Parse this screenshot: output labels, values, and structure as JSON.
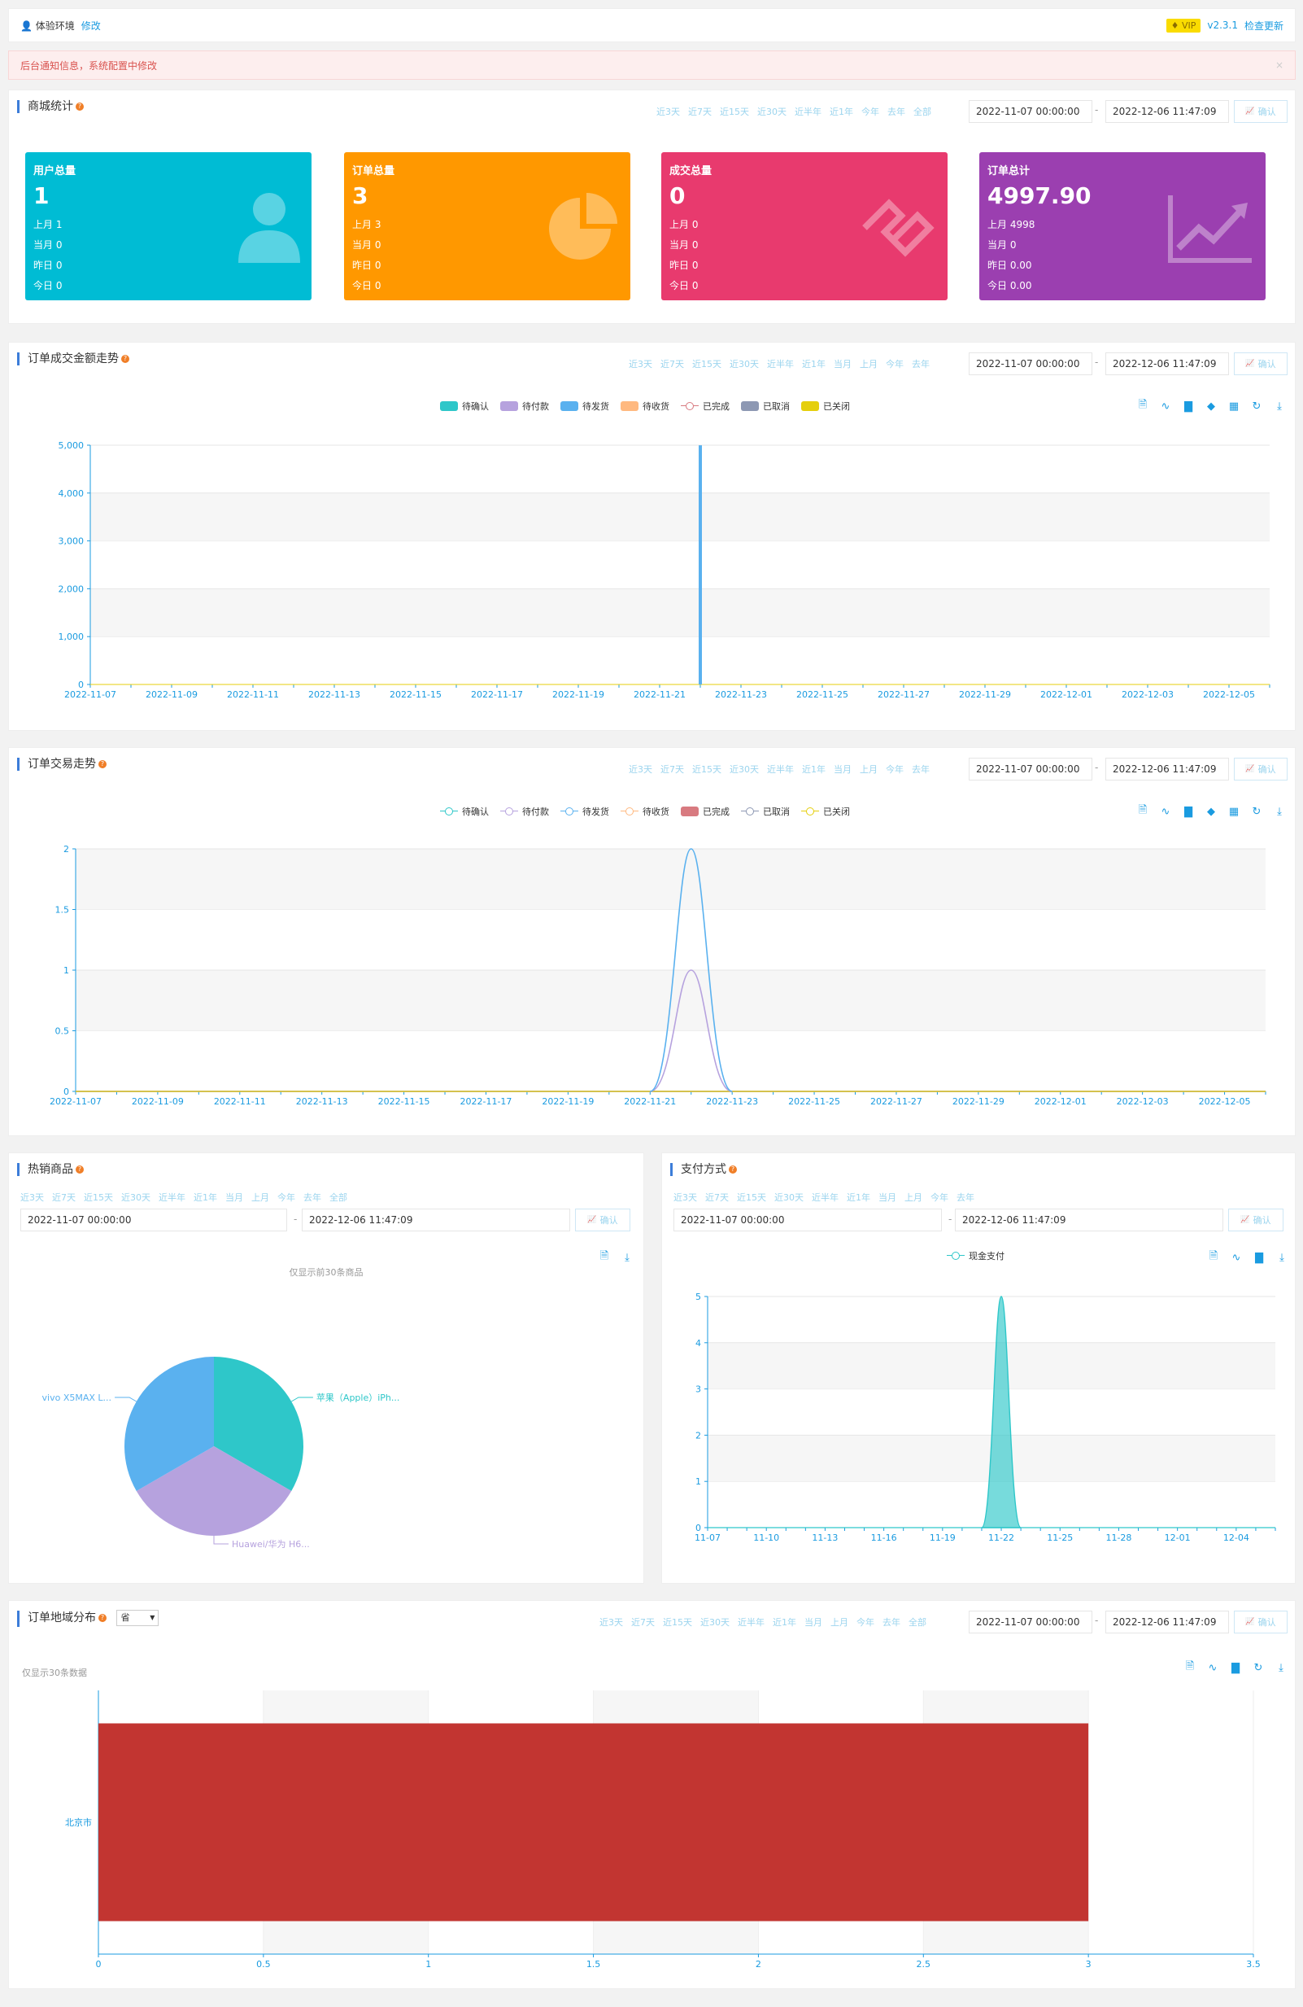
{
  "topbar": {
    "env": "体验环境",
    "edit": "修改",
    "vip": "VIP",
    "version": "v2.3.1",
    "update": "检查更新"
  },
  "notice": {
    "text": "后台通知信息，系统配置中修改",
    "close": "×"
  },
  "ranges_full": [
    "近3天",
    "近7天",
    "近15天",
    "近30天",
    "近半年",
    "近1年",
    "今年",
    "去年",
    "全部"
  ],
  "ranges_trend": [
    "近3天",
    "近7天",
    "近15天",
    "近30天",
    "近半年",
    "近1年",
    "当月",
    "上月",
    "今年",
    "去年"
  ],
  "ranges_hot": [
    "近3天",
    "近7天",
    "近15天",
    "近30天",
    "近半年",
    "近1年",
    "当月",
    "上月",
    "今年",
    "去年",
    "全部"
  ],
  "ranges_pay": [
    "近3天",
    "近7天",
    "近15天",
    "近30天",
    "近半年",
    "近1年",
    "当月",
    "上月",
    "今年",
    "去年"
  ],
  "ranges_region": [
    "近3天",
    "近7天",
    "近15天",
    "近30天",
    "近半年",
    "近1年",
    "当月",
    "上月",
    "今年",
    "去年",
    "全部"
  ],
  "date_start": "2022-11-07 00:00:00",
  "date_end": "2022-12-06 11:47:09",
  "confirm": "确认",
  "shop": {
    "title": "商城统计",
    "cards": [
      {
        "title": "用户总量",
        "value": "1",
        "lines": [
          "上月 1",
          "当月 0",
          "昨日 0",
          "今日 0"
        ],
        "color": "#00bcd4",
        "icon": "user-icon"
      },
      {
        "title": "订单总量",
        "value": "3",
        "lines": [
          "上月 3",
          "当月 0",
          "昨日 0",
          "今日 0"
        ],
        "color": "#ff9800",
        "icon": "pie-chart-icon"
      },
      {
        "title": "成交总量",
        "value": "0",
        "lines": [
          "上月 0",
          "当月 0",
          "昨日 0",
          "今日 0"
        ],
        "color": "#e83a6e",
        "icon": "deal-icon"
      },
      {
        "title": "订单总计",
        "value": "4997.90",
        "lines": [
          "上月 4998",
          "当月 0",
          "昨日 0.00",
          "今日 0.00"
        ],
        "color": "#9b3fb0",
        "icon": "trend-icon"
      }
    ]
  },
  "amount_panel": {
    "title": "订单成交金额走势"
  },
  "trade_panel": {
    "title": "订单交易走势"
  },
  "hot_panel": {
    "title": "热销商品",
    "note": "仅显示前30条商品"
  },
  "pay_panel": {
    "title": "支付方式"
  },
  "region_panel": {
    "title": "订单地域分布",
    "select": "省",
    "note": "仅显示30条数据"
  },
  "status_legend": [
    "待确认",
    "待付款",
    "待发货",
    "待收货",
    "已完成",
    "已取消",
    "已关闭"
  ],
  "status_colors": [
    "#2ec7c9",
    "#b6a2de",
    "#5ab1ef",
    "#ffb980",
    "#d87a80",
    "#8d98b3",
    "#e5cf0d"
  ],
  "chart_data": [
    {
      "type": "bar",
      "name": "订单成交金额走势",
      "categories": [
        "2022-11-07",
        "2022-11-08",
        "2022-11-09",
        "2022-11-10",
        "2022-11-11",
        "2022-11-12",
        "2022-11-13",
        "2022-11-14",
        "2022-11-15",
        "2022-11-16",
        "2022-11-17",
        "2022-11-18",
        "2022-11-19",
        "2022-11-20",
        "2022-11-21",
        "2022-11-22",
        "2022-11-23",
        "2022-11-24",
        "2022-11-25",
        "2022-11-26",
        "2022-11-27",
        "2022-11-28",
        "2022-11-29",
        "2022-11-30",
        "2022-12-01",
        "2022-12-02",
        "2022-12-03",
        "2022-12-04",
        "2022-12-05",
        "2022-12-06"
      ],
      "xtick_labels": [
        "2022-11-07",
        "2022-11-09",
        "2022-11-11",
        "2022-11-13",
        "2022-11-15",
        "2022-11-17",
        "2022-11-19",
        "2022-11-21",
        "2022-11-23",
        "2022-11-25",
        "2022-11-27",
        "2022-11-29",
        "2022-12-01",
        "2022-12-03",
        "2022-12-05"
      ],
      "series": [
        {
          "name": "待发货",
          "values": [
            0,
            0,
            0,
            0,
            0,
            0,
            0,
            0,
            0,
            0,
            0,
            0,
            0,
            0,
            0,
            4997.9,
            0,
            0,
            0,
            0,
            0,
            0,
            0,
            0,
            0,
            0,
            0,
            0,
            0,
            0
          ]
        }
      ],
      "yticks": [
        "0",
        "1,000",
        "2,000",
        "3,000",
        "4,000",
        "5,000"
      ],
      "ylim": [
        0,
        5000
      ],
      "legend": "top-center"
    },
    {
      "type": "line",
      "name": "订单交易走势",
      "categories": [
        "2022-11-07",
        "2022-11-08",
        "2022-11-09",
        "2022-11-10",
        "2022-11-11",
        "2022-11-12",
        "2022-11-13",
        "2022-11-14",
        "2022-11-15",
        "2022-11-16",
        "2022-11-17",
        "2022-11-18",
        "2022-11-19",
        "2022-11-20",
        "2022-11-21",
        "2022-11-22",
        "2022-11-23",
        "2022-11-24",
        "2022-11-25",
        "2022-11-26",
        "2022-11-27",
        "2022-11-28",
        "2022-11-29",
        "2022-11-30",
        "2022-12-01",
        "2022-12-02",
        "2022-12-03",
        "2022-12-04",
        "2022-12-05",
        "2022-12-06"
      ],
      "xtick_labels": [
        "2022-11-07",
        "2022-11-09",
        "2022-11-11",
        "2022-11-13",
        "2022-11-15",
        "2022-11-17",
        "2022-11-19",
        "2022-11-21",
        "2022-11-23",
        "2022-11-25",
        "2022-11-27",
        "2022-11-29",
        "2022-12-01",
        "2022-12-03",
        "2022-12-05"
      ],
      "series": [
        {
          "name": "待付款",
          "values": [
            0,
            0,
            0,
            0,
            0,
            0,
            0,
            0,
            0,
            0,
            0,
            0,
            0,
            0,
            0,
            1,
            0,
            0,
            0,
            0,
            0,
            0,
            0,
            0,
            0,
            0,
            0,
            0,
            0,
            0
          ]
        },
        {
          "name": "待发货",
          "values": [
            0,
            0,
            0,
            0,
            0,
            0,
            0,
            0,
            0,
            0,
            0,
            0,
            0,
            0,
            0,
            2,
            0,
            0,
            0,
            0,
            0,
            0,
            0,
            0,
            0,
            0,
            0,
            0,
            0,
            0
          ]
        }
      ],
      "yticks": [
        "0",
        "0.5",
        "1",
        "1.5",
        "2"
      ],
      "ylim": [
        0,
        2
      ],
      "legend": "top-center"
    },
    {
      "type": "pie",
      "name": "热销商品",
      "labels": [
        "苹果（Apple）iPh...",
        "Huawei/华为 H6...",
        "vivo X5MAX L..."
      ],
      "values": [
        1,
        1,
        1
      ],
      "colors": [
        "#2ec7c9",
        "#b6a2de",
        "#5ab1ef"
      ]
    },
    {
      "type": "area",
      "name": "支付方式",
      "legend_label": "现金支付",
      "xtick_labels": [
        "11-07",
        "11-10",
        "11-13",
        "11-16",
        "11-19",
        "11-22",
        "11-25",
        "11-28",
        "12-01",
        "12-04"
      ],
      "categories": [
        "11-07",
        "11-08",
        "11-09",
        "11-10",
        "11-11",
        "11-12",
        "11-13",
        "11-14",
        "11-15",
        "11-16",
        "11-17",
        "11-18",
        "11-19",
        "11-20",
        "11-21",
        "11-22",
        "11-23",
        "11-24",
        "11-25",
        "11-26",
        "11-27",
        "11-28",
        "11-29",
        "11-30",
        "12-01",
        "12-02",
        "12-03",
        "12-04",
        "12-05",
        "12-06"
      ],
      "series": [
        {
          "name": "现金支付",
          "values": [
            0,
            0,
            0,
            0,
            0,
            0,
            0,
            0,
            0,
            0,
            0,
            0,
            0,
            0,
            0,
            5,
            0,
            0,
            0,
            0,
            0,
            0,
            0,
            0,
            0,
            0,
            0,
            0,
            0,
            0
          ]
        }
      ],
      "yticks": [
        "0",
        "1",
        "2",
        "3",
        "4",
        "5"
      ],
      "ylim": [
        0,
        5
      ]
    },
    {
      "type": "bar",
      "name": "订单地域分布",
      "orientation": "horizontal",
      "categories": [
        "北京市"
      ],
      "values": [
        3
      ],
      "xticks": [
        "0",
        "0.5",
        "1",
        "1.5",
        "2",
        "2.5",
        "3",
        "3.5"
      ],
      "xlim": [
        0,
        3.5
      ],
      "color": "#c23531"
    }
  ]
}
